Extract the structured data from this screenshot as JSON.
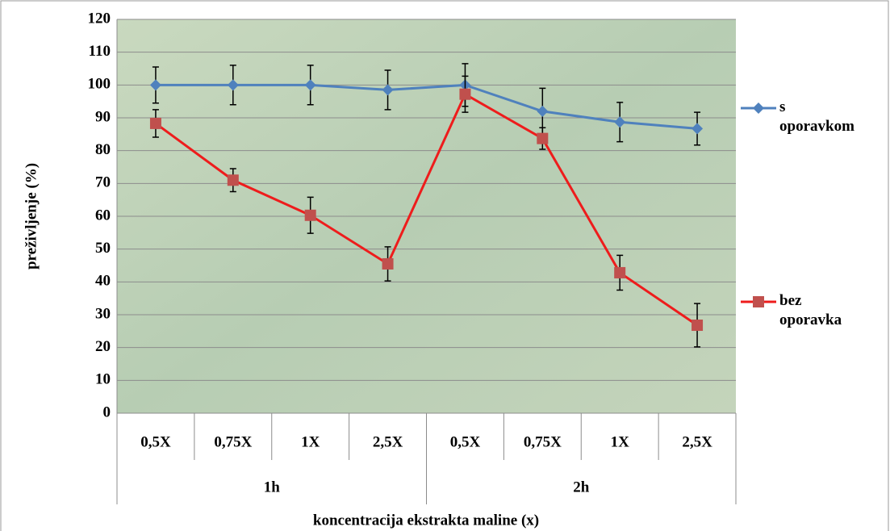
{
  "chart_data": {
    "type": "line",
    "x_label": "koncentracija ekstrakta maline (x)",
    "y_label": "preživljenje (%)",
    "categories": [
      "0,5X",
      "0,75X",
      "1X",
      "2,5X",
      "0,5X",
      "0,75X",
      "1X",
      "2,5X"
    ],
    "category_groups": [
      "1h",
      "2h"
    ],
    "series": [
      {
        "name": "s oporavkom",
        "color": "#4f81bd",
        "marker": "diamond",
        "values": [
          100,
          100,
          100,
          98.5,
          100,
          92,
          88.7,
          86.7
        ],
        "errors": [
          5.5,
          6,
          6,
          6,
          6.5,
          7,
          6,
          5
        ]
      },
      {
        "name": "bez oporavka",
        "color": "#ee1c1c",
        "marker_color": "#c0504d",
        "marker": "square",
        "values": [
          88.3,
          71,
          60.3,
          45.5,
          97.2,
          83.7,
          42.8,
          26.8
        ],
        "errors": [
          4.2,
          3.5,
          5.5,
          5.2,
          5.5,
          3.3,
          5.3,
          6.6
        ]
      }
    ],
    "ylim": [
      0,
      120
    ],
    "yticks": [
      0,
      10,
      20,
      30,
      40,
      50,
      60,
      70,
      80,
      90,
      100,
      110,
      120
    ],
    "grid": true,
    "legend": "right"
  }
}
